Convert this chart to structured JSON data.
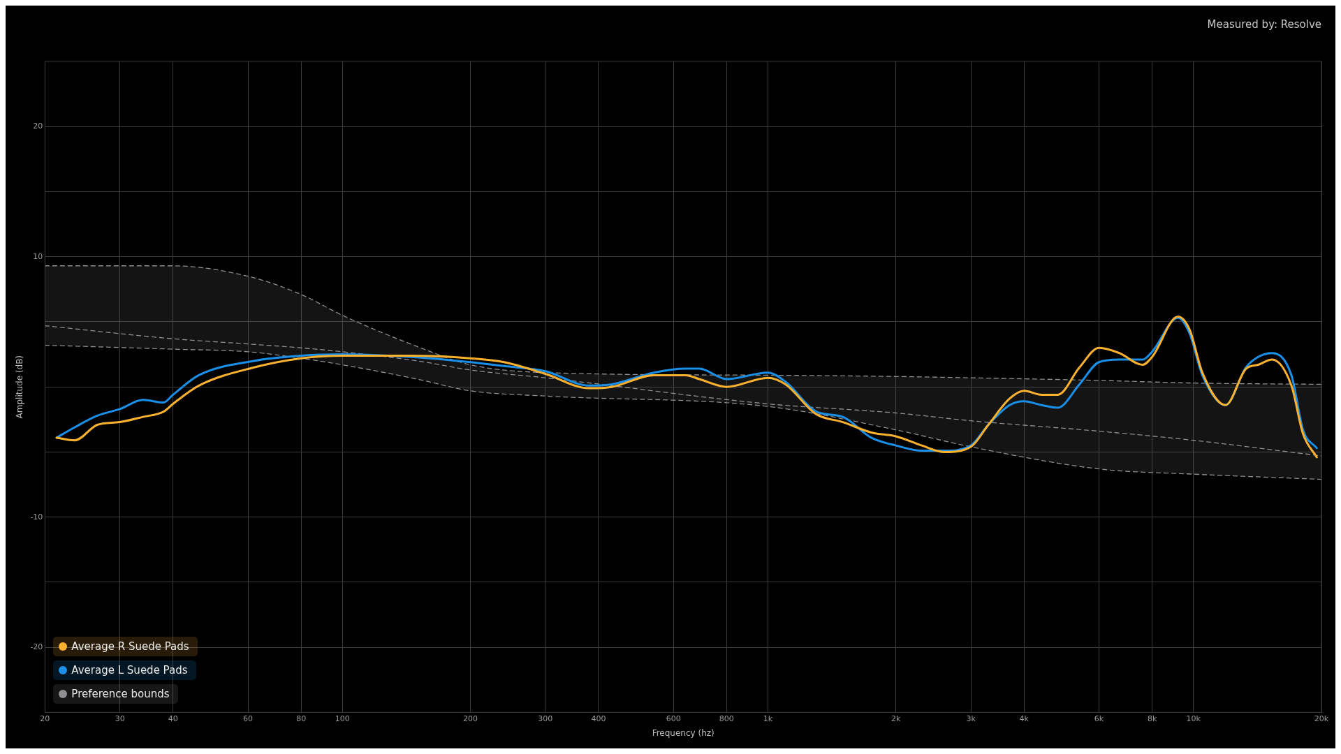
{
  "chart_data": {
    "type": "line",
    "xlabel": "Frequency (hz)",
    "ylabel": "Amplitude (dB)",
    "annotations": [
      "Measured by: Resolve"
    ],
    "log": "x",
    "grid": true,
    "legend": "bottom left",
    "marker": "none",
    "xlim": [
      20,
      20000
    ],
    "xticks": [
      20,
      30,
      40,
      60,
      80,
      100,
      200,
      300,
      400,
      600,
      800,
      {
        "value": 1000,
        "label": "1k"
      },
      {
        "value": 2000,
        "label": "2k"
      },
      {
        "value": 3000,
        "label": "3k"
      },
      {
        "value": 4000,
        "label": "4k"
      },
      {
        "value": 6000,
        "label": "6k"
      },
      {
        "value": 8000,
        "label": "8k"
      },
      {
        "value": 10000,
        "label": "10k"
      },
      {
        "value": 20000,
        "label": "20k"
      }
    ],
    "ylim": [
      -25,
      25
    ],
    "yticks": [
      -20,
      {
        "value": -15,
        "label": null
      },
      -10,
      {
        "value": -5,
        "label": null
      },
      {
        "value": 0,
        "label": null
      },
      {
        "value": 5,
        "label": null
      },
      10,
      {
        "value": 15,
        "label": null
      },
      20
    ],
    "x": [
      21.3,
      23.5,
      26.6,
      30,
      34,
      38,
      40,
      46,
      62,
      80,
      100,
      145,
      200,
      240,
      300,
      380,
      430,
      540,
      640,
      690,
      800,
      1000,
      1100,
      1300,
      1500,
      1750,
      2000,
      2300,
      2600,
      3000,
      3300,
      3700,
      4000,
      4400,
      4800,
      5400,
      6000,
      6700,
      7600,
      8000,
      9200,
      9800,
      10500,
      11900,
      13300,
      14200,
      15300,
      17000,
      18100,
      19500
    ],
    "series": [
      {
        "name": "Average R Suede Pads",
        "color": "#fbb130",
        "values": [
          -3.9,
          -4.1,
          -2.9,
          -2.7,
          -2.3,
          -1.9,
          -1.3,
          0.1,
          1.5,
          2.2,
          2.4,
          2.4,
          2.2,
          1.9,
          1.0,
          -0.1,
          0,
          0.9,
          0.9,
          0.6,
          0,
          0.7,
          0.2,
          -2.1,
          -2.7,
          -3.5,
          -3.8,
          -4.5,
          -5,
          -4.6,
          -2.9,
          -0.9,
          -0.3,
          -0.6,
          -0.6,
          1.5,
          3.0,
          2.6,
          1.7,
          2.3,
          5.4,
          4.4,
          1.1,
          -1.4,
          1.4,
          1.7,
          2.1,
          0.1,
          -3.6,
          -5.4
        ]
      },
      {
        "name": "Average L Suede Pads",
        "color": "#1a8fe8",
        "values": [
          -3.9,
          -3.1,
          -2.2,
          -1.7,
          -1.0,
          -1.2,
          -0.6,
          0.9,
          2.0,
          2.4,
          2.5,
          2.3,
          1.9,
          1.6,
          1.2,
          0.1,
          0.2,
          1.1,
          1.4,
          1.4,
          0.6,
          1.1,
          0.4,
          -1.9,
          -2.3,
          -3.9,
          -4.5,
          -4.9,
          -4.9,
          -4.5,
          -2.9,
          -1.4,
          -1.1,
          -1.4,
          -1.6,
          0.2,
          1.9,
          2.1,
          2.1,
          2.7,
          5.3,
          4.1,
          0.9,
          -1.4,
          1.5,
          2.3,
          2.6,
          0.9,
          -3.3,
          -4.7
        ]
      },
      {
        "name": "Preference bounds",
        "color": "#8e8e93",
        "line_style": "dashed",
        "x": [
          20,
          40,
          60,
          80,
          100,
          150,
          200,
          300,
          1000,
          2000,
          3000,
          6000,
          10000,
          20000
        ],
        "values": [
          4.7,
          3.7,
          3.3,
          3.0,
          2.7,
          2.0,
          1.3,
          0.7,
          -1.3,
          -2.0,
          -2.6,
          -3.4,
          -4.1,
          -5.3
        ],
        "upper": [
          9.3,
          9.3,
          8.5,
          7.1,
          5.5,
          3.1,
          1.7,
          1.1,
          0.9,
          0.8,
          0.7,
          0.5,
          0.3,
          0.2
        ],
        "lower": [
          3.2,
          2.9,
          2.7,
          2.2,
          1.7,
          0.6,
          -0.3,
          -0.7,
          -1.5,
          -3.3,
          -4.6,
          -6.3,
          -6.7,
          -7.1
        ]
      },
      {
        "color": "#8e8e93",
        "line_style": "dashed",
        "x": [
          20,
          40,
          60,
          80,
          100,
          150,
          200,
          300,
          1000,
          2000,
          3000,
          6000,
          10000,
          20000
        ],
        "values": [
          9.3,
          9.3,
          8.5,
          7.1,
          5.5,
          3.1,
          1.7,
          1.1,
          0.9,
          0.8,
          0.7,
          0.5,
          0.3,
          0.2
        ]
      },
      {
        "color": "#8e8e93",
        "line_style": "dashed",
        "x": [
          20,
          40,
          60,
          80,
          100,
          150,
          200,
          300,
          1000,
          2000,
          3000,
          6000,
          10000,
          20000
        ],
        "values": [
          3.2,
          2.9,
          2.7,
          2.2,
          1.7,
          0.6,
          -0.3,
          -0.7,
          -1.5,
          -3.3,
          -4.6,
          -6.3,
          -6.7,
          -7.1
        ]
      }
    ]
  }
}
